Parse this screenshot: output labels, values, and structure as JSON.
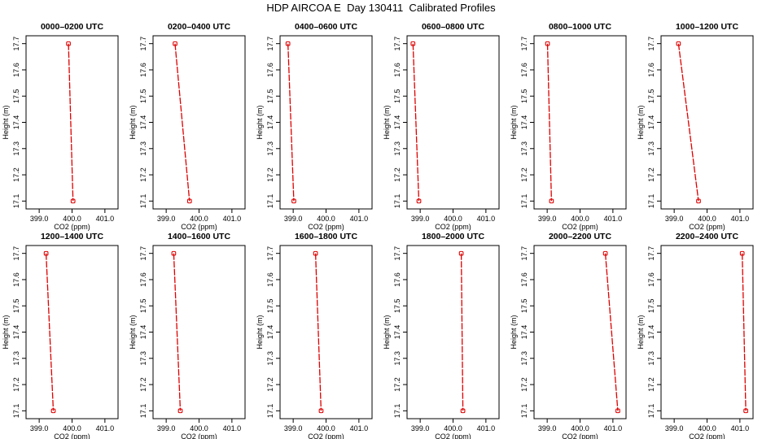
{
  "title": "HDP AIRCOA E  Day 130411  Calibrated Profiles",
  "colors": {
    "series": "#dd0000",
    "axis": "#000000",
    "background": "#ffffff"
  },
  "chart_data": [
    {
      "type": "line",
      "title": "0000–0200 UTC",
      "xlabel": "CO2 (ppm)",
      "ylabel": "Height (m)",
      "xlim": [
        398.6,
        401.4
      ],
      "ylim": [
        17.07,
        17.73
      ],
      "xticks": [
        "399.0",
        "400.0",
        "401.0"
      ],
      "yticks": [
        "17.1",
        "17.2",
        "17.3",
        "17.4",
        "17.5",
        "17.6",
        "17.7"
      ],
      "points": [
        {
          "x": 399.89,
          "y": 17.7
        },
        {
          "x": 400.03,
          "y": 17.1
        }
      ]
    },
    {
      "type": "line",
      "title": "0200–0400 UTC",
      "xlabel": "CO2 (ppm)",
      "ylabel": "Height (m)",
      "xlim": [
        398.6,
        401.4
      ],
      "ylim": [
        17.07,
        17.73
      ],
      "xticks": [
        "399.0",
        "400.0",
        "401.0"
      ],
      "yticks": [
        "17.1",
        "17.2",
        "17.3",
        "17.4",
        "17.5",
        "17.6",
        "17.7"
      ],
      "points": [
        {
          "x": 399.27,
          "y": 17.7
        },
        {
          "x": 399.71,
          "y": 17.1
        }
      ]
    },
    {
      "type": "line",
      "title": "0400–0600 UTC",
      "xlabel": "CO2 (ppm)",
      "ylabel": "Height (m)",
      "xlim": [
        398.6,
        401.4
      ],
      "ylim": [
        17.07,
        17.73
      ],
      "xticks": [
        "399.0",
        "400.0",
        "401.0"
      ],
      "yticks": [
        "17.1",
        "17.2",
        "17.3",
        "17.4",
        "17.5",
        "17.6",
        "17.7"
      ],
      "points": [
        {
          "x": 398.84,
          "y": 17.7
        },
        {
          "x": 399.02,
          "y": 17.1
        }
      ]
    },
    {
      "type": "line",
      "title": "0600–0800 UTC",
      "xlabel": "CO2 (ppm)",
      "ylabel": "Height (m)",
      "xlim": [
        398.6,
        401.4
      ],
      "ylim": [
        17.07,
        17.73
      ],
      "xticks": [
        "399.0",
        "400.0",
        "401.0"
      ],
      "yticks": [
        "17.1",
        "17.2",
        "17.3",
        "17.4",
        "17.5",
        "17.6",
        "17.7"
      ],
      "points": [
        {
          "x": 398.78,
          "y": 17.7
        },
        {
          "x": 398.96,
          "y": 17.1
        }
      ]
    },
    {
      "type": "line",
      "title": "0800–1000 UTC",
      "xlabel": "CO2 (ppm)",
      "ylabel": "Height (m)",
      "xlim": [
        398.6,
        401.4
      ],
      "ylim": [
        17.07,
        17.73
      ],
      "xticks": [
        "399.0",
        "400.0",
        "401.0"
      ],
      "yticks": [
        "17.1",
        "17.2",
        "17.3",
        "17.4",
        "17.5",
        "17.6",
        "17.7"
      ],
      "points": [
        {
          "x": 399.01,
          "y": 17.7
        },
        {
          "x": 399.13,
          "y": 17.1
        }
      ]
    },
    {
      "type": "line",
      "title": "1000–1200 UTC",
      "xlabel": "CO2 (ppm)",
      "ylabel": "Height (m)",
      "xlim": [
        398.6,
        401.4
      ],
      "ylim": [
        17.07,
        17.73
      ],
      "xticks": [
        "399.0",
        "400.0",
        "401.0"
      ],
      "yticks": [
        "17.1",
        "17.2",
        "17.3",
        "17.4",
        "17.5",
        "17.6",
        "17.7"
      ],
      "points": [
        {
          "x": 399.13,
          "y": 17.7
        },
        {
          "x": 399.74,
          "y": 17.1
        }
      ]
    },
    {
      "type": "line",
      "title": "1200–1400 UTC",
      "xlabel": "CO2 (ppm)",
      "ylabel": "Height (m)",
      "xlim": [
        398.6,
        401.4
      ],
      "ylim": [
        17.07,
        17.73
      ],
      "xticks": [
        "399.0",
        "400.0",
        "401.0"
      ],
      "yticks": [
        "17.1",
        "17.2",
        "17.3",
        "17.4",
        "17.5",
        "17.6",
        "17.7"
      ],
      "points": [
        {
          "x": 399.21,
          "y": 17.7
        },
        {
          "x": 399.43,
          "y": 17.1
        }
      ]
    },
    {
      "type": "line",
      "title": "1400–1600 UTC",
      "xlabel": "CO2 (ppm)",
      "ylabel": "Height (m)",
      "xlim": [
        398.6,
        401.4
      ],
      "ylim": [
        17.07,
        17.73
      ],
      "xticks": [
        "399.0",
        "400.0",
        "401.0"
      ],
      "yticks": [
        "17.1",
        "17.2",
        "17.3",
        "17.4",
        "17.5",
        "17.6",
        "17.7"
      ],
      "points": [
        {
          "x": 399.23,
          "y": 17.7
        },
        {
          "x": 399.43,
          "y": 17.1
        }
      ]
    },
    {
      "type": "line",
      "title": "1600–1800 UTC",
      "xlabel": "CO2 (ppm)",
      "ylabel": "Height (m)",
      "xlim": [
        398.6,
        401.4
      ],
      "ylim": [
        17.07,
        17.73
      ],
      "xticks": [
        "399.0",
        "400.0",
        "401.0"
      ],
      "yticks": [
        "17.1",
        "17.2",
        "17.3",
        "17.4",
        "17.5",
        "17.6",
        "17.7"
      ],
      "points": [
        {
          "x": 399.68,
          "y": 17.7
        },
        {
          "x": 399.85,
          "y": 17.1
        }
      ]
    },
    {
      "type": "line",
      "title": "1800–2000 UTC",
      "xlabel": "CO2 (ppm)",
      "ylabel": "Height (m)",
      "xlim": [
        398.6,
        401.4
      ],
      "ylim": [
        17.07,
        17.73
      ],
      "xticks": [
        "399.0",
        "400.0",
        "401.0"
      ],
      "yticks": [
        "17.1",
        "17.2",
        "17.3",
        "17.4",
        "17.5",
        "17.6",
        "17.7"
      ],
      "points": [
        {
          "x": 400.25,
          "y": 17.7
        },
        {
          "x": 400.3,
          "y": 17.1
        }
      ]
    },
    {
      "type": "line",
      "title": "2000–2200 UTC",
      "xlabel": "CO2 (ppm)",
      "ylabel": "Height (m)",
      "xlim": [
        398.6,
        401.4
      ],
      "ylim": [
        17.07,
        17.73
      ],
      "xticks": [
        "399.0",
        "400.0",
        "401.0"
      ],
      "yticks": [
        "17.1",
        "17.2",
        "17.3",
        "17.4",
        "17.5",
        "17.6",
        "17.7"
      ],
      "points": [
        {
          "x": 400.77,
          "y": 17.7
        },
        {
          "x": 401.15,
          "y": 17.1
        }
      ]
    },
    {
      "type": "line",
      "title": "2200–2400 UTC",
      "xlabel": "CO2 (ppm)",
      "ylabel": "Height (m)",
      "xlim": [
        398.6,
        401.4
      ],
      "ylim": [
        17.07,
        17.73
      ],
      "xticks": [
        "399.0",
        "400.0",
        "401.0"
      ],
      "yticks": [
        "17.1",
        "17.2",
        "17.3",
        "17.4",
        "17.5",
        "17.6",
        "17.7"
      ],
      "points": [
        {
          "x": 401.07,
          "y": 17.7
        },
        {
          "x": 401.18,
          "y": 17.1
        }
      ]
    }
  ]
}
